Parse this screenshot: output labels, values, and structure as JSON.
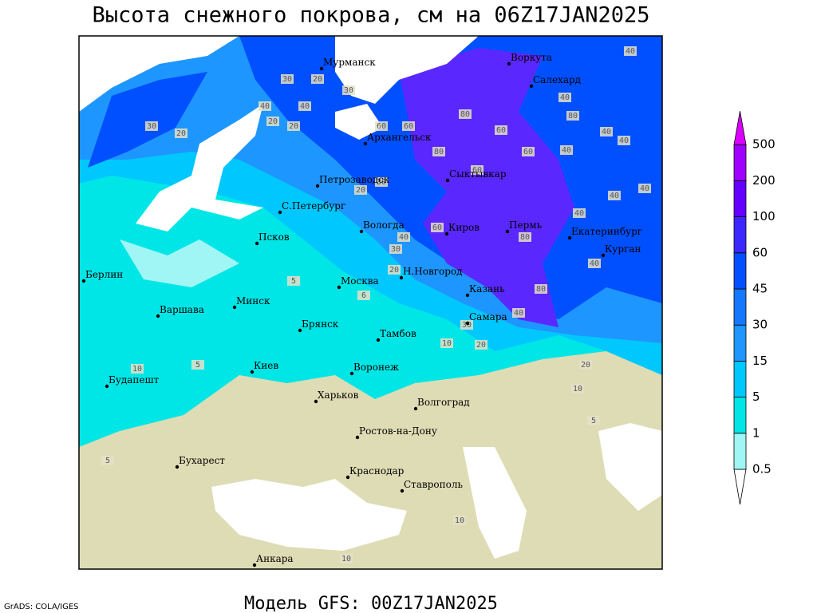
{
  "title": "Высота снежного покрова, см на 06Z17JAN2025",
  "footer": {
    "model": "Модель GFS: 00Z17JAN2025",
    "credit": "GrADS: COLA/IGES"
  },
  "legend": {
    "levels": [
      0.5,
      1,
      5,
      15,
      30,
      45,
      60,
      100,
      200,
      500
    ],
    "colors": [
      "#ffffff",
      "#a0f5f5",
      "#00e6e6",
      "#00c8ff",
      "#1e96ff",
      "#1478ff",
      "#0050ff",
      "#3c28ff",
      "#6400ff",
      "#a000ff",
      "#dc00ff"
    ]
  },
  "cities": [
    "Мурманск",
    "Воркута",
    "Салехард",
    "Архангельск",
    "Сыктывкар",
    "Петрозаводск",
    "С.Петербург",
    "Вологда",
    "Киров",
    "Пермь",
    "Екатеринбург",
    "Курган",
    "Псков",
    "Берлин",
    "Н.Новгород",
    "Москва",
    "Казань",
    "Минск",
    "Варшава",
    "Самара",
    "Брянск",
    "Тамбов",
    "Киев",
    "Воронеж",
    "Будапешт",
    "Харьков",
    "Волгоград",
    "Ростов-на-Дону",
    "Бухарест",
    "Краснодар",
    "Ставрополь",
    "Анкара"
  ],
  "contour_labels": [
    30,
    20,
    30,
    40,
    30,
    20,
    40,
    40,
    20,
    20,
    60,
    60,
    80,
    60,
    80,
    60,
    40,
    40,
    40,
    80,
    40,
    60,
    20,
    30,
    40,
    40,
    40,
    40,
    30,
    60,
    80,
    40,
    80,
    40,
    30,
    10,
    20,
    20,
    10,
    5,
    5,
    6,
    10,
    5,
    5,
    10,
    10,
    20
  ]
}
